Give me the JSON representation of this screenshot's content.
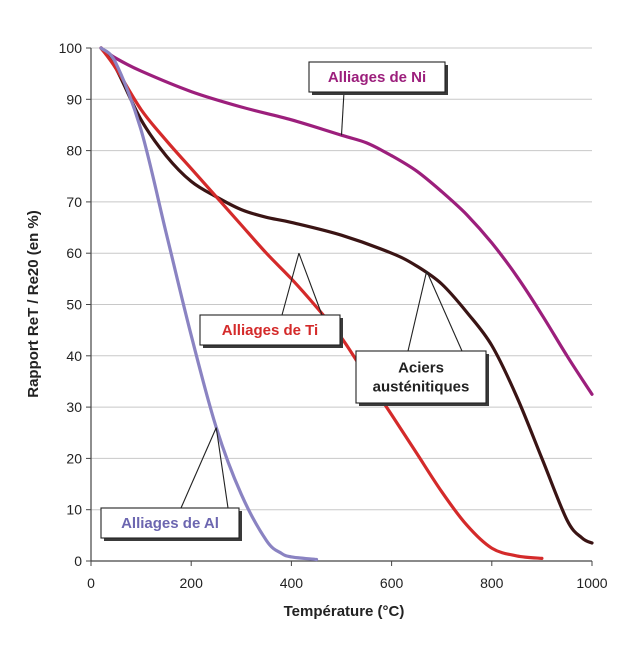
{
  "chart_data": {
    "type": "line",
    "title": "",
    "xlabel": "Température (°C)",
    "ylabel": "Rapport ReT / Re20 (en %)",
    "xlim": [
      0,
      1000
    ],
    "ylim": [
      0,
      100
    ],
    "xticks": [
      "0",
      "200",
      "400",
      "600",
      "800",
      "1000"
    ],
    "yticks": [
      "0",
      "10",
      "20",
      "30",
      "40",
      "50",
      "60",
      "70",
      "80",
      "90",
      "100"
    ],
    "grid": true,
    "series": [
      {
        "name": "Alliages de Ni",
        "color": "#9c1f7c",
        "points": [
          [
            20,
            100
          ],
          [
            50,
            98
          ],
          [
            100,
            95.5
          ],
          [
            200,
            91.5
          ],
          [
            300,
            88.5
          ],
          [
            400,
            86
          ],
          [
            500,
            83
          ],
          [
            550,
            81.5
          ],
          [
            600,
            79
          ],
          [
            650,
            76
          ],
          [
            700,
            72
          ],
          [
            750,
            67.5
          ],
          [
            800,
            62
          ],
          [
            850,
            55.5
          ],
          [
            900,
            48
          ],
          [
            950,
            40
          ],
          [
            1000,
            32.5
          ]
        ]
      },
      {
        "name": "Aciers austénitiques",
        "color": "#3a1414",
        "points": [
          [
            20,
            100
          ],
          [
            50,
            96
          ],
          [
            100,
            86
          ],
          [
            150,
            79
          ],
          [
            200,
            74
          ],
          [
            250,
            71
          ],
          [
            300,
            68.5
          ],
          [
            350,
            67
          ],
          [
            400,
            66
          ],
          [
            500,
            63.5
          ],
          [
            600,
            60
          ],
          [
            650,
            57.5
          ],
          [
            700,
            54
          ],
          [
            750,
            48.5
          ],
          [
            800,
            42
          ],
          [
            850,
            32
          ],
          [
            900,
            20
          ],
          [
            950,
            8
          ],
          [
            980,
            4.5
          ],
          [
            1000,
            3.5
          ]
        ]
      },
      {
        "name": "Alliages de Ti",
        "color": "#d42a2a",
        "points": [
          [
            20,
            100
          ],
          [
            50,
            96
          ],
          [
            100,
            88
          ],
          [
            150,
            82
          ],
          [
            200,
            76.5
          ],
          [
            250,
            71
          ],
          [
            300,
            65.5
          ],
          [
            350,
            60
          ],
          [
            400,
            55
          ],
          [
            450,
            49.5
          ],
          [
            500,
            43.5
          ],
          [
            550,
            36
          ],
          [
            600,
            28.5
          ],
          [
            650,
            21
          ],
          [
            700,
            13.5
          ],
          [
            750,
            7
          ],
          [
            800,
            2.5
          ],
          [
            850,
            1
          ],
          [
            900,
            0.5
          ]
        ]
      },
      {
        "name": "Alliages de Al",
        "color": "#8a83c2",
        "points": [
          [
            20,
            100
          ],
          [
            50,
            97
          ],
          [
            100,
            84
          ],
          [
            150,
            64
          ],
          [
            200,
            44
          ],
          [
            250,
            26
          ],
          [
            300,
            13
          ],
          [
            350,
            4
          ],
          [
            380,
            1.5
          ],
          [
            400,
            0.8
          ],
          [
            450,
            0.3
          ]
        ]
      }
    ],
    "annotations": [
      {
        "text": "Alliages de Ni",
        "series": 0,
        "anchor": [
          500,
          83
        ],
        "color": "#9c1f7c"
      },
      {
        "text": "Alliages de Ti",
        "series": 2,
        "anchor": [
          415,
          60
        ],
        "color": "#d42a2a"
      },
      {
        "text": "Aciers austénitiques",
        "lines": [
          "Aciers",
          "austénitiques"
        ],
        "series": 1,
        "anchor": [
          670,
          56.5
        ],
        "color": "#222222"
      },
      {
        "text": "Alliages de Al",
        "series": 3,
        "anchor": [
          250,
          26
        ],
        "color": "#6c66b0"
      }
    ]
  }
}
